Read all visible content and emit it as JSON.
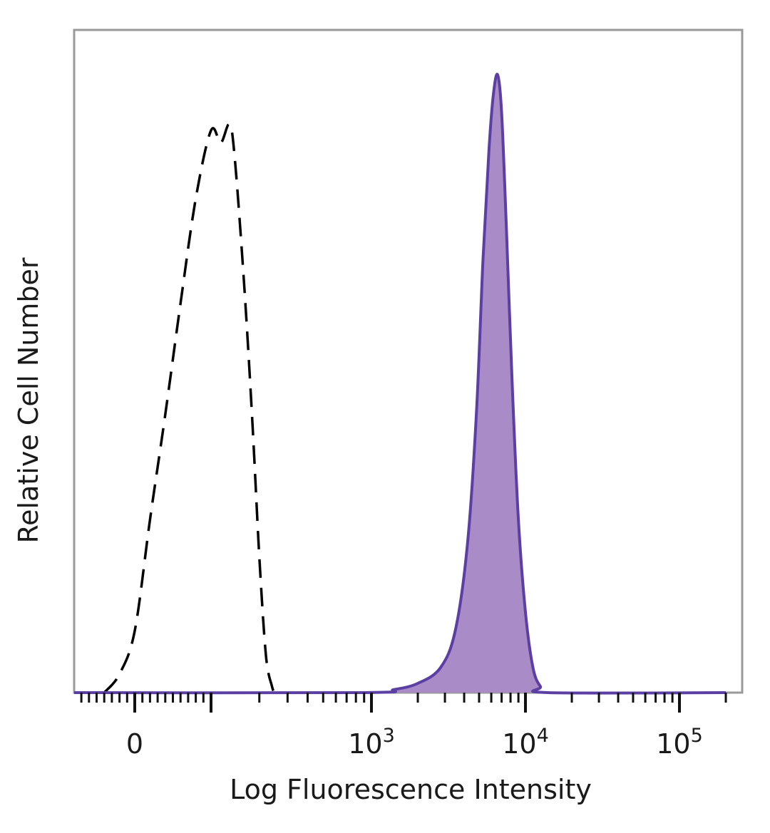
{
  "chart_data": {
    "type": "area",
    "xlabel": "Log Fluorescence Intensity",
    "ylabel": "Relative Cell Number",
    "x_scale": "biexponential",
    "x_ticks": [
      {
        "value": 0,
        "base": "0",
        "exp": ""
      },
      {
        "value": 1000,
        "base": "10",
        "exp": "3"
      },
      {
        "value": 10000,
        "base": "10",
        "exp": "4"
      },
      {
        "value": 100000,
        "base": "10",
        "exp": "5"
      }
    ],
    "ylim": [
      0,
      100
    ],
    "grid": false,
    "series": [
      {
        "style": "dashed",
        "color": "#000000",
        "filled": false,
        "points": [
          [
            -40,
            0
          ],
          [
            -20,
            3
          ],
          [
            0,
            10
          ],
          [
            20,
            28
          ],
          [
            40,
            45
          ],
          [
            60,
            63
          ],
          [
            80,
            80
          ],
          [
            100,
            91
          ],
          [
            115,
            89
          ],
          [
            130,
            92
          ],
          [
            140,
            87
          ],
          [
            160,
            67
          ],
          [
            180,
            45
          ],
          [
            200,
            22
          ],
          [
            220,
            6
          ],
          [
            240,
            1
          ],
          [
            250,
            0
          ]
        ]
      },
      {
        "style": "solid",
        "color": "#5b3fa3",
        "fill": "#a98bc7",
        "filled": true,
        "points": [
          [
            -150,
            0
          ],
          [
            900,
            0
          ],
          [
            1400,
            0.5
          ],
          [
            2000,
            1.5
          ],
          [
            2800,
            4
          ],
          [
            3500,
            10
          ],
          [
            4200,
            24
          ],
          [
            4800,
            45
          ],
          [
            5300,
            70
          ],
          [
            5800,
            88
          ],
          [
            6200,
            97
          ],
          [
            6600,
            100
          ],
          [
            7000,
            94
          ],
          [
            7500,
            76
          ],
          [
            8200,
            50
          ],
          [
            9000,
            28
          ],
          [
            10000,
            13
          ],
          [
            11200,
            4
          ],
          [
            12500,
            1
          ],
          [
            14000,
            0
          ],
          [
            200000,
            0
          ]
        ]
      }
    ]
  }
}
